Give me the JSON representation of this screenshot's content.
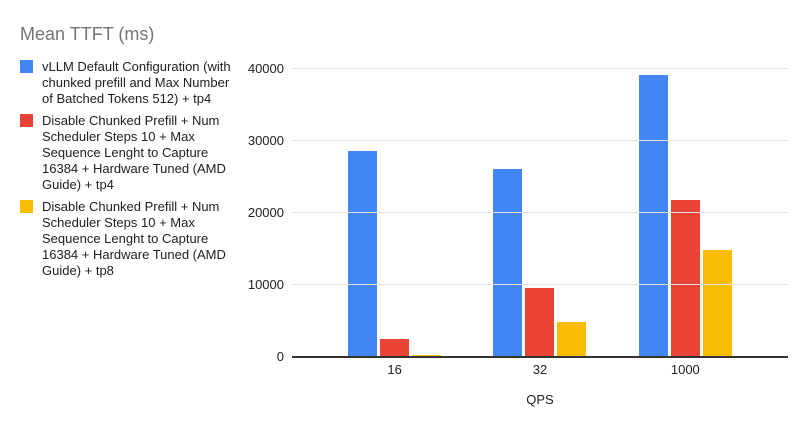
{
  "chart_data": {
    "type": "bar",
    "title": "Mean TTFT (ms)",
    "xlabel": "QPS",
    "ylabel": "",
    "categories": [
      "16",
      "32",
      "1000"
    ],
    "series": [
      {
        "name": "vLLM Default Configuration (with\nchunked prefill and Max Number\nof Batched Tokens 512) + tp4",
        "color": "#4285F4",
        "values": [
          28500,
          26000,
          39000
        ]
      },
      {
        "name": "Disable Chunked Prefill + Num\nScheduler Steps 10 + Max\nSequence Lenght to Capture\n16384 + Hardware Tuned (AMD\nGuide) + tp4",
        "color": "#EA4335",
        "values": [
          2300,
          9400,
          21700
        ]
      },
      {
        "name": "Disable Chunked Prefill + Num\nScheduler Steps 10 + Max\nSequence Lenght to Capture\n16384 + Hardware Tuned (AMD\nGuide) + tp8",
        "color": "#FBBC04",
        "values": [
          150,
          4700,
          14700
        ]
      }
    ],
    "ylim": [
      0,
      40000
    ],
    "yticks": [
      0,
      10000,
      20000,
      30000,
      40000
    ],
    "grid": true,
    "legend_position": "left",
    "styles": {
      "background": "#ffffff",
      "title_color": "#757575",
      "text_color": "#212121",
      "gridline_color": "#e3e3e3",
      "axis_line_color": "#333333"
    }
  }
}
